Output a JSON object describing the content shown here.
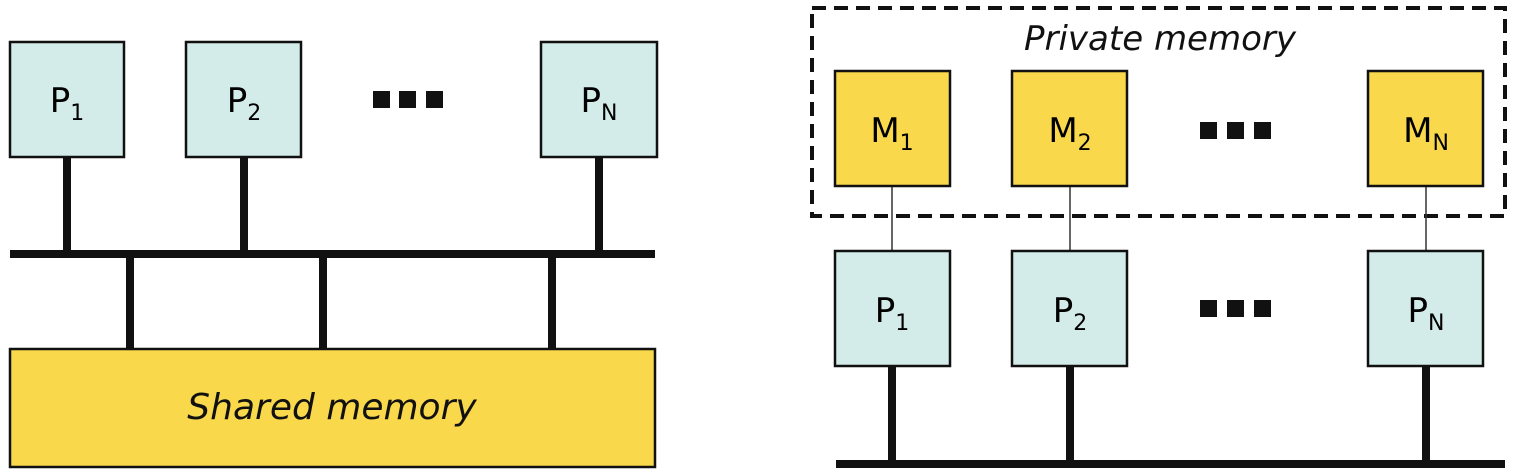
{
  "shared_panel": {
    "processors": [
      {
        "letter": "P",
        "sub": "1"
      },
      {
        "letter": "P",
        "sub": "2"
      },
      {
        "letter": "P",
        "sub": "N"
      }
    ],
    "memory_label": "Shared memory"
  },
  "private_panel": {
    "group_label": "Private memory",
    "memories": [
      {
        "letter": "M",
        "sub": "1"
      },
      {
        "letter": "M",
        "sub": "2"
      },
      {
        "letter": "M",
        "sub": "N"
      }
    ],
    "processors": [
      {
        "letter": "P",
        "sub": "1"
      },
      {
        "letter": "P",
        "sub": "2"
      },
      {
        "letter": "P",
        "sub": "N"
      }
    ]
  },
  "colors": {
    "processor_fill": "#d4ece9",
    "memory_fill": "#f9d84b",
    "stroke": "#111111"
  }
}
